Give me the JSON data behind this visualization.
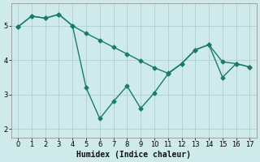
{
  "xlabel": "Humidex (Indice chaleur)",
  "bg_color": "#ceeaea",
  "grid_color": "#aecece",
  "line_color": "#1a7a6e",
  "line1_x": [
    0,
    1,
    2,
    3,
    4,
    5,
    6,
    7,
    8,
    9,
    10,
    11,
    12,
    13,
    14,
    15,
    16,
    17
  ],
  "line1_y": [
    4.97,
    5.28,
    5.22,
    5.33,
    5.0,
    4.78,
    4.58,
    4.38,
    4.18,
    3.98,
    3.78,
    3.62,
    3.9,
    4.3,
    4.45,
    3.95,
    3.9,
    3.8
  ],
  "line2_x": [
    0,
    1,
    2,
    3,
    4,
    5,
    6,
    7,
    8,
    9,
    10,
    11,
    12,
    13,
    14,
    15,
    16,
    17
  ],
  "line2_y": [
    4.97,
    5.28,
    5.22,
    5.33,
    5.0,
    3.2,
    2.3,
    2.8,
    3.25,
    2.6,
    3.05,
    3.6,
    3.9,
    4.3,
    4.45,
    3.5,
    3.9,
    3.8
  ],
  "trend_x": [
    0,
    17
  ],
  "trend_y": [
    5.1,
    3.85
  ],
  "xlim": [
    -0.5,
    17.5
  ],
  "ylim": [
    1.75,
    5.65
  ],
  "xticks": [
    0,
    1,
    2,
    3,
    4,
    5,
    6,
    7,
    8,
    9,
    10,
    11,
    12,
    13,
    14,
    15,
    16,
    17
  ],
  "yticks": [
    2,
    3,
    4,
    5
  ],
  "markersize": 2.5,
  "linewidth": 1.0
}
